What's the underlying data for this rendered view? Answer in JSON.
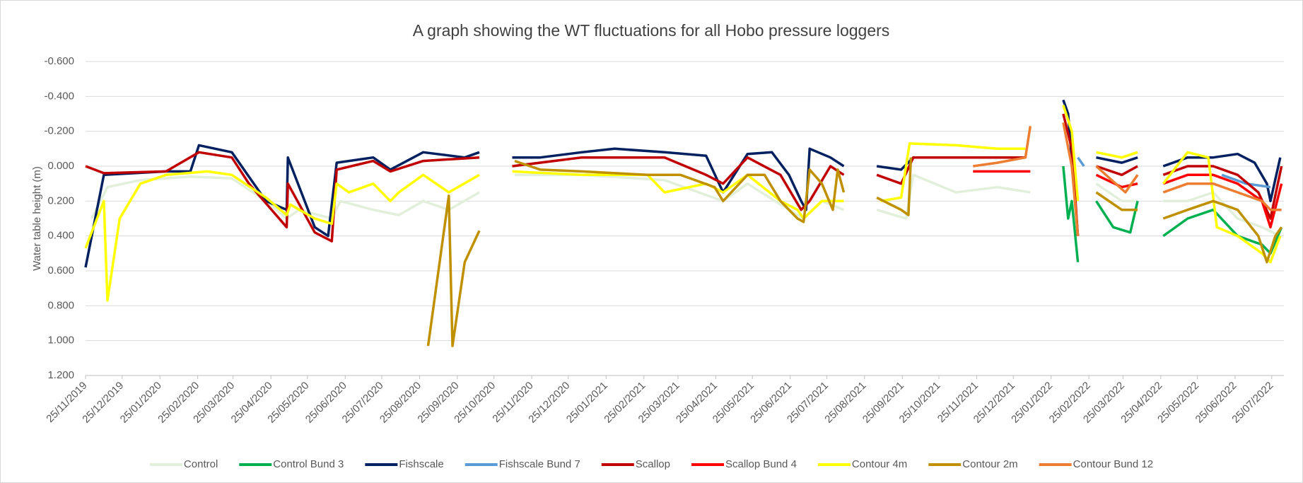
{
  "chart_data": {
    "type": "line",
    "title": "A graph showing the WT fluctuations for all Hobo pressure loggers",
    "y_label": "Water table height (m)",
    "ylim": [
      -0.6,
      1.2
    ],
    "y_inverted": true,
    "yticks": [
      {
        "value": -0.6,
        "label": "-0.600"
      },
      {
        "value": -0.4,
        "label": "-0.400"
      },
      {
        "value": -0.2,
        "label": "-0.200"
      },
      {
        "value": 0,
        "label": "0.000"
      },
      {
        "value": 0.2,
        "label": "0.200"
      },
      {
        "value": 0.4,
        "label": "0.400"
      },
      {
        "value": 0.6,
        "label": "0.600"
      },
      {
        "value": 0.8,
        "label": "0.800"
      },
      {
        "value": 1.0,
        "label": "1.000"
      },
      {
        "value": 1.2,
        "label": "1.200"
      }
    ],
    "xlim": [
      "25/11/2019",
      "04/08/2022"
    ],
    "xticks": [
      "25/11/2019",
      "25/12/2019",
      "25/01/2020",
      "25/02/2020",
      "25/03/2020",
      "25/04/2020",
      "25/05/2020",
      "25/06/2020",
      "25/07/2020",
      "25/08/2020",
      "25/09/2020",
      "25/10/2020",
      "25/11/2020",
      "25/12/2020",
      "25/01/2021",
      "25/02/2021",
      "25/03/2021",
      "25/04/2021",
      "25/05/2021",
      "25/06/2021",
      "25/07/2021",
      "25/08/2021",
      "25/09/2021",
      "25/10/2021",
      "25/11/2021",
      "25/12/2021",
      "25/01/2022",
      "25/02/2022",
      "25/03/2022",
      "25/04/2022",
      "25/05/2022",
      "25/06/2022",
      "25/07/2022"
    ],
    "grid": true,
    "legend": "bottom",
    "series": [
      {
        "name": "Control",
        "color": "#e2efda",
        "x": [
          "30/11/2019",
          "13/12/2019",
          "09/01/2020",
          "19/02/2020",
          "24/03/2020",
          "21/04/2020",
          "08/05/2020",
          "18/05/2020",
          "14/06/2020",
          "21/06/2020",
          "18/07/2020",
          "08/08/2020",
          "28/08/2020",
          "18/09/2020",
          "13/10/2020",
          "28/10/2020",
          "11/11/2020",
          "05/01/2021",
          "14/03/2021",
          "01/05/2021",
          "21/05/2021",
          "24/06/2021",
          "06/07/2021",
          "21/07/2021",
          "08/08/2021",
          "21/08/2021",
          "04/09/2021",
          "28/09/2021",
          "04/10/2021",
          "08/11/2021",
          "12/12/2021",
          "08/01/2022",
          "25/02/2022",
          "03/03/2022",
          "24/03/2022",
          "06/04/2022",
          "17/04/2022",
          "27/04/2022",
          "17/05/2022",
          "07/06/2022",
          "27/06/2022",
          "17/07/2022",
          "01/08/2022"
        ],
        "values": [
          0.3,
          0.12,
          0.08,
          0.06,
          0.07,
          0.2,
          0.3,
          0.25,
          0.3,
          0.2,
          0.25,
          0.28,
          0.2,
          0.25,
          0.15,
          null,
          0.05,
          0.05,
          0.08,
          0.2,
          0.1,
          0.25,
          0.3,
          0.2,
          0.25,
          null,
          0.25,
          0.3,
          0.05,
          0.15,
          0.12,
          0.15,
          null,
          0.1,
          0.2,
          0.2,
          null,
          0.2,
          0.2,
          0.15,
          0.3,
          0.35,
          0.4
        ]
      },
      {
        "name": "Control Bund 3",
        "color": "#00b050",
        "x": [
          "04/02/2022",
          "08/02/2022",
          "11/02/2022",
          "16/02/2022",
          "25/02/2022",
          "03/03/2022",
          "17/03/2022",
          "31/03/2022",
          "06/04/2022",
          "17/04/2022",
          "27/04/2022",
          "17/05/2022",
          "07/06/2022",
          "27/06/2022",
          "17/07/2022",
          "24/07/2022",
          "02/08/2022"
        ],
        "values": [
          0.0,
          0.3,
          0.2,
          0.55,
          null,
          0.2,
          0.35,
          0.38,
          0.2,
          null,
          0.4,
          0.3,
          0.25,
          0.4,
          0.45,
          0.5,
          0.35
        ]
      },
      {
        "name": "Fishscale",
        "color": "#002060",
        "x": [
          "25/11/2019",
          "10/12/2019",
          "30/01/2020",
          "19/02/2020",
          "26/02/2020",
          "24/03/2020",
          "21/04/2020",
          "08/05/2020",
          "09/05/2020",
          "31/05/2020",
          "11/06/2020",
          "18/06/2020",
          "18/07/2020",
          "01/08/2020",
          "28/08/2020",
          "01/10/2020",
          "13/10/2020",
          "28/10/2020",
          "09/11/2020",
          "02/12/2020",
          "05/01/2021",
          "01/02/2021",
          "14/03/2021",
          "17/04/2021",
          "01/05/2021",
          "21/05/2021",
          "10/06/2021",
          "24/06/2021",
          "04/07/2021",
          "08/07/2021",
          "11/07/2021",
          "28/07/2021",
          "08/08/2021",
          "21/08/2021",
          "04/09/2021",
          "24/09/2021",
          "04/10/2021",
          "08/11/2021",
          "12/12/2021",
          "04/01/2022",
          "22/01/2022",
          "04/02/2022",
          "08/02/2022",
          "16/02/2022",
          "25/02/2022",
          "03/03/2022",
          "24/03/2022",
          "06/04/2022",
          "17/04/2022",
          "27/04/2022",
          "17/05/2022",
          "07/06/2022",
          "27/06/2022",
          "11/07/2022",
          "21/07/2022",
          "24/07/2022",
          "01/08/2022"
        ],
        "values": [
          0.58,
          0.05,
          0.03,
          0.03,
          -0.12,
          -0.08,
          0.2,
          0.25,
          -0.05,
          0.35,
          0.4,
          -0.02,
          -0.05,
          0.02,
          -0.08,
          -0.05,
          -0.08,
          null,
          -0.05,
          -0.05,
          -0.08,
          -0.1,
          -0.08,
          -0.06,
          0.15,
          -0.07,
          -0.08,
          0.05,
          0.2,
          0.25,
          -0.1,
          -0.05,
          0.0,
          null,
          0.0,
          0.02,
          -0.05,
          -0.05,
          -0.05,
          -0.05,
          null,
          -0.38,
          -0.3,
          0.4,
          null,
          -0.05,
          -0.02,
          -0.05,
          null,
          0.0,
          -0.05,
          -0.05,
          -0.07,
          -0.02,
          0.1,
          0.2,
          -0.05
        ]
      },
      {
        "name": "Fishscale Bund 7",
        "color": "#5b9bd5",
        "x": [
          "16/02/2022",
          "21/02/2022",
          "25/02/2022",
          "14/06/2022",
          "04/07/2022",
          "24/07/2022"
        ],
        "values": [
          -0.05,
          0.0,
          null,
          0.05,
          0.1,
          0.12
        ]
      },
      {
        "name": "Scallop",
        "color": "#c00000",
        "x": [
          "25/11/2019",
          "10/12/2019",
          "30/01/2020",
          "26/02/2020",
          "24/03/2020",
          "07/04/2020",
          "08/05/2020",
          "09/05/2020",
          "31/05/2020",
          "14/06/2020",
          "18/06/2020",
          "18/07/2020",
          "01/08/2020",
          "28/08/2020",
          "13/10/2020",
          "28/10/2020",
          "09/11/2020",
          "05/01/2021",
          "14/03/2021",
          "17/04/2021",
          "01/05/2021",
          "21/05/2021",
          "17/06/2021",
          "04/07/2021",
          "11/07/2021",
          "28/07/2021",
          "08/08/2021",
          "21/08/2021",
          "04/09/2021",
          "24/09/2021",
          "04/10/2021",
          "08/11/2021",
          "12/12/2021",
          "04/01/2022",
          "22/01/2022",
          "04/02/2022",
          "11/02/2022",
          "16/02/2022",
          "25/02/2022",
          "03/03/2022",
          "24/03/2022",
          "06/04/2022",
          "17/04/2022",
          "27/04/2022",
          "17/05/2022",
          "07/06/2022",
          "27/06/2022",
          "14/07/2022",
          "24/07/2022",
          "02/08/2022"
        ],
        "values": [
          0.0,
          0.04,
          0.03,
          -0.08,
          -0.05,
          0.1,
          0.35,
          0.1,
          0.38,
          0.43,
          0.02,
          -0.03,
          0.03,
          -0.03,
          -0.05,
          null,
          0.0,
          -0.05,
          -0.05,
          0.05,
          0.1,
          -0.05,
          0.05,
          0.25,
          0.2,
          0.0,
          0.05,
          null,
          0.05,
          0.1,
          -0.05,
          -0.05,
          -0.05,
          -0.05,
          null,
          -0.3,
          -0.1,
          0.4,
          null,
          0.0,
          0.05,
          0.0,
          null,
          0.05,
          0.0,
          0.0,
          0.05,
          0.15,
          0.3,
          0.0
        ]
      },
      {
        "name": "Scallop Bund 4",
        "color": "#ff0000",
        "x": [
          "22/11/2021",
          "08/01/2022",
          "22/01/2022",
          "03/03/2022",
          "24/03/2022",
          "06/04/2022",
          "17/04/2022",
          "27/04/2022",
          "17/05/2022",
          "07/06/2022",
          "27/06/2022",
          "17/07/2022",
          "24/07/2022",
          "02/08/2022"
        ],
        "values": [
          0.03,
          0.03,
          null,
          0.05,
          0.12,
          0.1,
          null,
          0.1,
          0.05,
          0.05,
          0.1,
          0.2,
          0.35,
          0.1
        ]
      },
      {
        "name": "Contour 4m",
        "color": "#ffff00",
        "x": [
          "25/11/2019",
          "10/12/2019",
          "13/12/2019",
          "23/12/2019",
          "09/01/2020",
          "30/01/2020",
          "04/03/2020",
          "24/03/2020",
          "21/04/2020",
          "08/05/2020",
          "11/05/2020",
          "31/05/2020",
          "14/06/2020",
          "18/06/2020",
          "28/06/2020",
          "18/07/2020",
          "01/08/2020",
          "08/08/2020",
          "28/08/2020",
          "18/09/2020",
          "13/10/2020",
          "28/10/2020",
          "09/11/2020",
          "05/01/2021",
          "28/02/2021",
          "14/03/2021",
          "17/04/2021",
          "01/05/2021",
          "21/05/2021",
          "17/06/2021",
          "01/07/2021",
          "06/07/2021",
          "21/07/2021",
          "08/08/2021",
          "21/08/2021",
          "07/09/2021",
          "24/09/2021",
          "01/10/2021",
          "08/11/2021",
          "12/12/2021",
          "04/01/2022",
          "22/01/2022",
          "04/02/2022",
          "11/02/2022",
          "16/02/2022",
          "25/02/2022",
          "03/03/2022",
          "24/03/2022",
          "06/04/2022",
          "17/04/2022",
          "27/04/2022",
          "17/05/2022",
          "03/06/2022",
          "10/06/2022",
          "27/06/2022",
          "17/07/2022",
          "24/07/2022",
          "01/08/2022"
        ],
        "values": [
          0.47,
          0.2,
          0.77,
          0.3,
          0.1,
          0.05,
          0.03,
          0.05,
          0.18,
          0.28,
          0.22,
          0.3,
          0.33,
          0.1,
          0.15,
          0.1,
          0.2,
          0.15,
          0.05,
          0.15,
          0.05,
          null,
          0.03,
          0.05,
          0.05,
          0.15,
          0.1,
          0.15,
          0.05,
          0.2,
          0.25,
          0.3,
          0.2,
          0.2,
          null,
          0.2,
          0.18,
          -0.13,
          -0.12,
          -0.1,
          -0.1,
          null,
          -0.35,
          -0.2,
          0.2,
          null,
          -0.08,
          -0.05,
          -0.08,
          null,
          0.1,
          -0.08,
          -0.05,
          0.35,
          0.4,
          0.5,
          0.55,
          0.4
        ]
      },
      {
        "name": "Contour 2m",
        "color": "#bf9000",
        "x": [
          "01/09/2020",
          "18/09/2020",
          "21/09/2020",
          "01/10/2020",
          "13/10/2020",
          "28/10/2020",
          "11/11/2020",
          "02/12/2020",
          "05/01/2021",
          "28/02/2021",
          "27/03/2021",
          "24/04/2021",
          "01/05/2021",
          "21/05/2021",
          "04/06/2021",
          "17/06/2021",
          "01/07/2021",
          "06/07/2021",
          "11/07/2021",
          "21/07/2021",
          "30/07/2021",
          "03/08/2021",
          "08/08/2021",
          "21/08/2021",
          "04/09/2021",
          "24/09/2021",
          "30/09/2021",
          "02/10/2021",
          "25/02/2022",
          "03/03/2022",
          "24/03/2022",
          "06/04/2022",
          "17/04/2022",
          "27/04/2022",
          "17/05/2022",
          "07/06/2022",
          "27/06/2022",
          "14/07/2022",
          "21/07/2022",
          "28/07/2022",
          "02/08/2022"
        ],
        "values": [
          1.03,
          0.17,
          1.03,
          0.55,
          0.37,
          null,
          -0.03,
          0.02,
          0.03,
          0.05,
          0.05,
          0.12,
          0.2,
          0.05,
          0.05,
          0.2,
          0.3,
          0.32,
          0.02,
          0.1,
          0.25,
          0.02,
          0.15,
          null,
          0.18,
          0.25,
          0.28,
          -0.05,
          null,
          0.15,
          0.25,
          0.25,
          null,
          0.3,
          0.25,
          0.2,
          0.25,
          0.4,
          0.55,
          0.4,
          0.35
        ]
      },
      {
        "name": "Contour Bund 12",
        "color": "#ed7d31",
        "x": [
          "22/11/2021",
          "12/12/2021",
          "04/01/2022",
          "08/01/2022",
          "22/01/2022",
          "04/02/2022",
          "11/02/2022",
          "16/02/2022",
          "25/02/2022",
          "03/03/2022",
          "27/03/2022",
          "06/04/2022",
          "17/04/2022",
          "27/04/2022",
          "17/05/2022",
          "07/06/2022",
          "27/06/2022",
          "17/07/2022",
          "24/07/2022",
          "02/08/2022"
        ],
        "values": [
          0.0,
          -0.02,
          -0.05,
          -0.23,
          null,
          -0.25,
          0.0,
          0.4,
          null,
          0.0,
          0.15,
          0.05,
          null,
          0.15,
          0.1,
          0.1,
          0.15,
          0.2,
          0.25,
          0.25
        ]
      }
    ]
  }
}
